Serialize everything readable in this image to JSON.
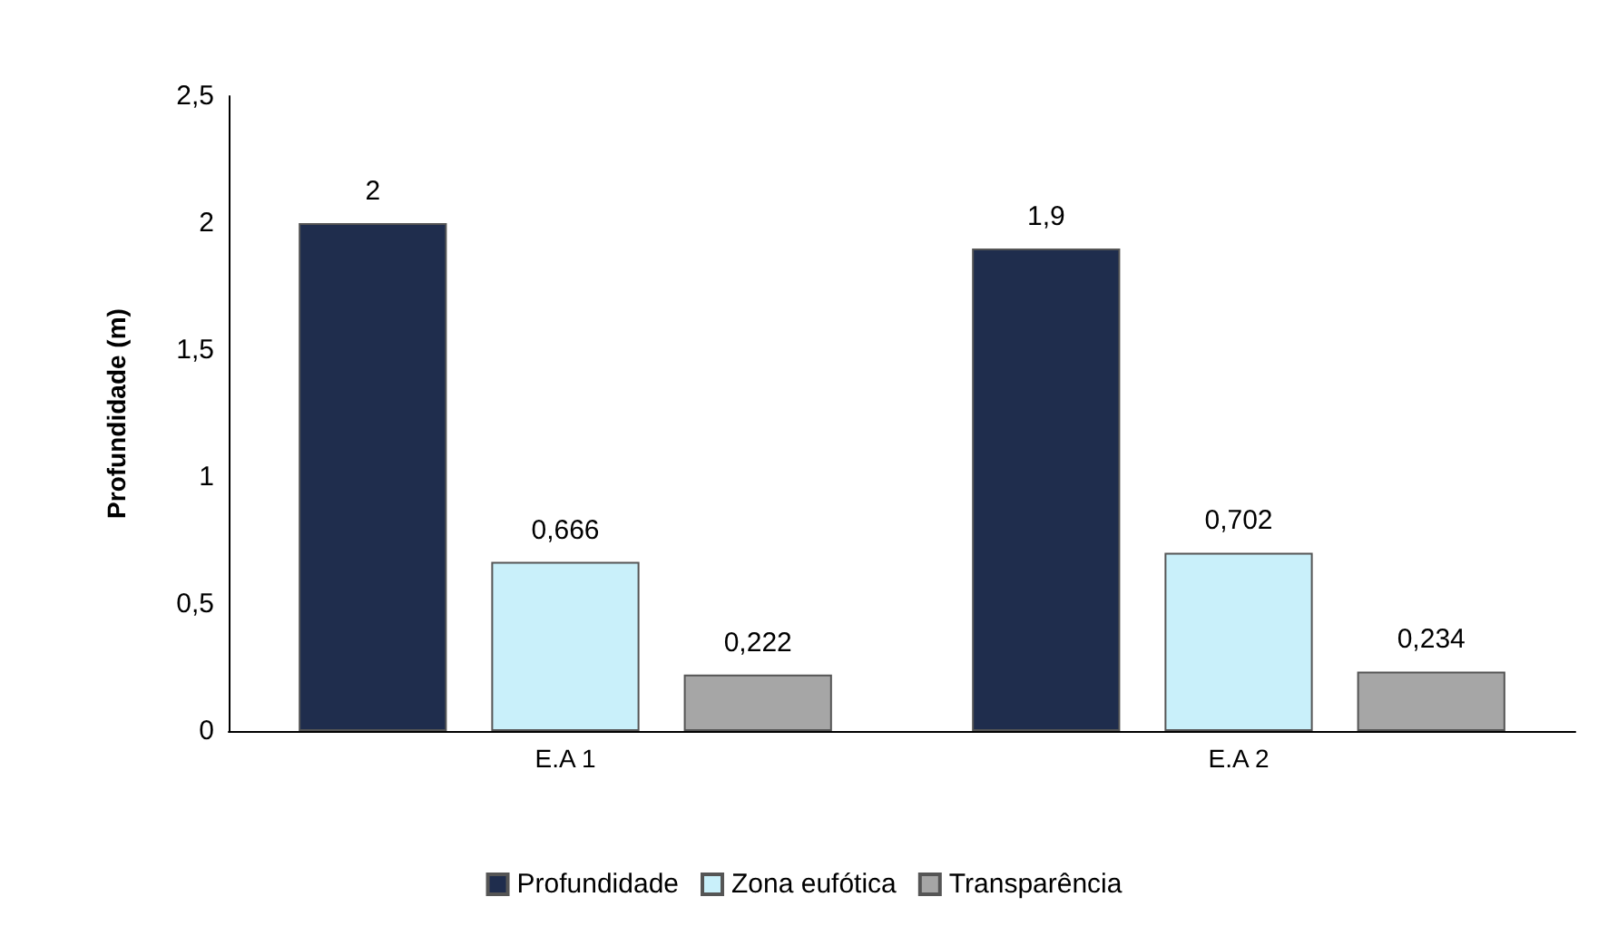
{
  "chart_data": {
    "type": "bar",
    "ylabel": "Profundidade (m)",
    "categories": [
      "E.A 1",
      "E.A 2"
    ],
    "series": [
      {
        "name": "Profundidade",
        "color": "#1f2d4d",
        "values": [
          2,
          1.9
        ],
        "value_labels": [
          "2",
          "1,9"
        ]
      },
      {
        "name": "Zona eufótica",
        "color": "#c9f0fa",
        "values": [
          0.666,
          0.702
        ],
        "value_labels": [
          "0,666",
          "0,702"
        ]
      },
      {
        "name": "Transparência",
        "color": "#a6a6a6",
        "values": [
          0.222,
          0.234
        ],
        "value_labels": [
          "0,222",
          "0,234"
        ]
      }
    ],
    "ylim": [
      0,
      2.5
    ],
    "yticks": [
      0,
      {
        "value": 0.5,
        "label": "0,5"
      },
      1,
      {
        "value": 1.5,
        "label": "1,5"
      },
      2,
      {
        "value": 2.5,
        "label": "2,5"
      }
    ],
    "grid": false,
    "legend": "bottom"
  }
}
